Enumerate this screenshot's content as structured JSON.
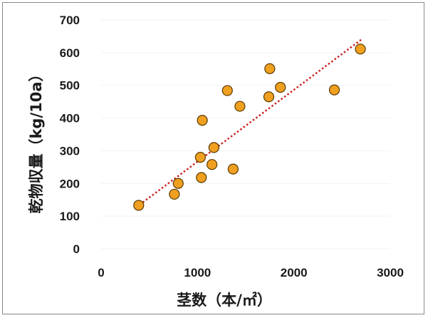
{
  "chart_data": {
    "type": "scatter",
    "title": "",
    "xlabel": "茎数（本/㎡）",
    "ylabel": "乾物収量（kg/10a）",
    "xlim": [
      0,
      3000
    ],
    "ylim": [
      0,
      700
    ],
    "x_ticks": [
      "0",
      "1000",
      "2000",
      "3000"
    ],
    "y_ticks": [
      "0",
      "100",
      "200",
      "300",
      "400",
      "500",
      "600",
      "700"
    ],
    "grid": false,
    "legend": "none",
    "marker_color": "#f0a020",
    "marker_edge_color": "#5a3a00",
    "trendline_color": "#cc2222",
    "trendline": {
      "type": "linear",
      "x": [
        400,
        2700
      ],
      "y": [
        135,
        640
      ]
    },
    "points": [
      {
        "x": 390,
        "y": 133
      },
      {
        "x": 760,
        "y": 167
      },
      {
        "x": 800,
        "y": 200
      },
      {
        "x": 1030,
        "y": 280
      },
      {
        "x": 1040,
        "y": 218
      },
      {
        "x": 1050,
        "y": 393
      },
      {
        "x": 1150,
        "y": 258
      },
      {
        "x": 1170,
        "y": 310
      },
      {
        "x": 1310,
        "y": 484
      },
      {
        "x": 1370,
        "y": 244
      },
      {
        "x": 1440,
        "y": 436
      },
      {
        "x": 1740,
        "y": 465
      },
      {
        "x": 1750,
        "y": 551
      },
      {
        "x": 1860,
        "y": 494
      },
      {
        "x": 2420,
        "y": 486
      },
      {
        "x": 2690,
        "y": 611
      }
    ]
  }
}
